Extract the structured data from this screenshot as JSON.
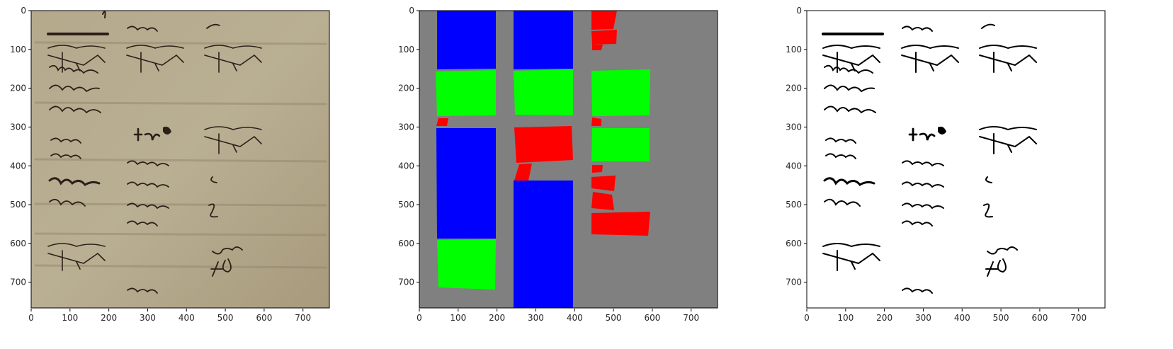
{
  "figure": {
    "panels": [
      {
        "id": "original",
        "kind": "manuscript-photo",
        "xticks": [
          "0",
          "100",
          "200",
          "300",
          "400",
          "500",
          "600",
          "700"
        ],
        "yticks": [
          "0",
          "100",
          "200",
          "300",
          "400",
          "500",
          "600",
          "700"
        ]
      },
      {
        "id": "segmentation",
        "kind": "region-mask",
        "xticks": [
          "0",
          "100",
          "200",
          "300",
          "400",
          "500",
          "600",
          "700"
        ],
        "yticks": [
          "0",
          "100",
          "200",
          "300",
          "400",
          "500",
          "600",
          "700"
        ],
        "colors": {
          "background": "#808080",
          "blue": "#0000ff",
          "green": "#00ff00",
          "red": "#ff0000"
        }
      },
      {
        "id": "binarized",
        "kind": "binary-ink",
        "xticks": [
          "0",
          "100",
          "200",
          "300",
          "400",
          "500",
          "600",
          "700"
        ],
        "yticks": [
          "0",
          "100",
          "200",
          "300",
          "400",
          "500",
          "600",
          "700"
        ]
      }
    ]
  }
}
